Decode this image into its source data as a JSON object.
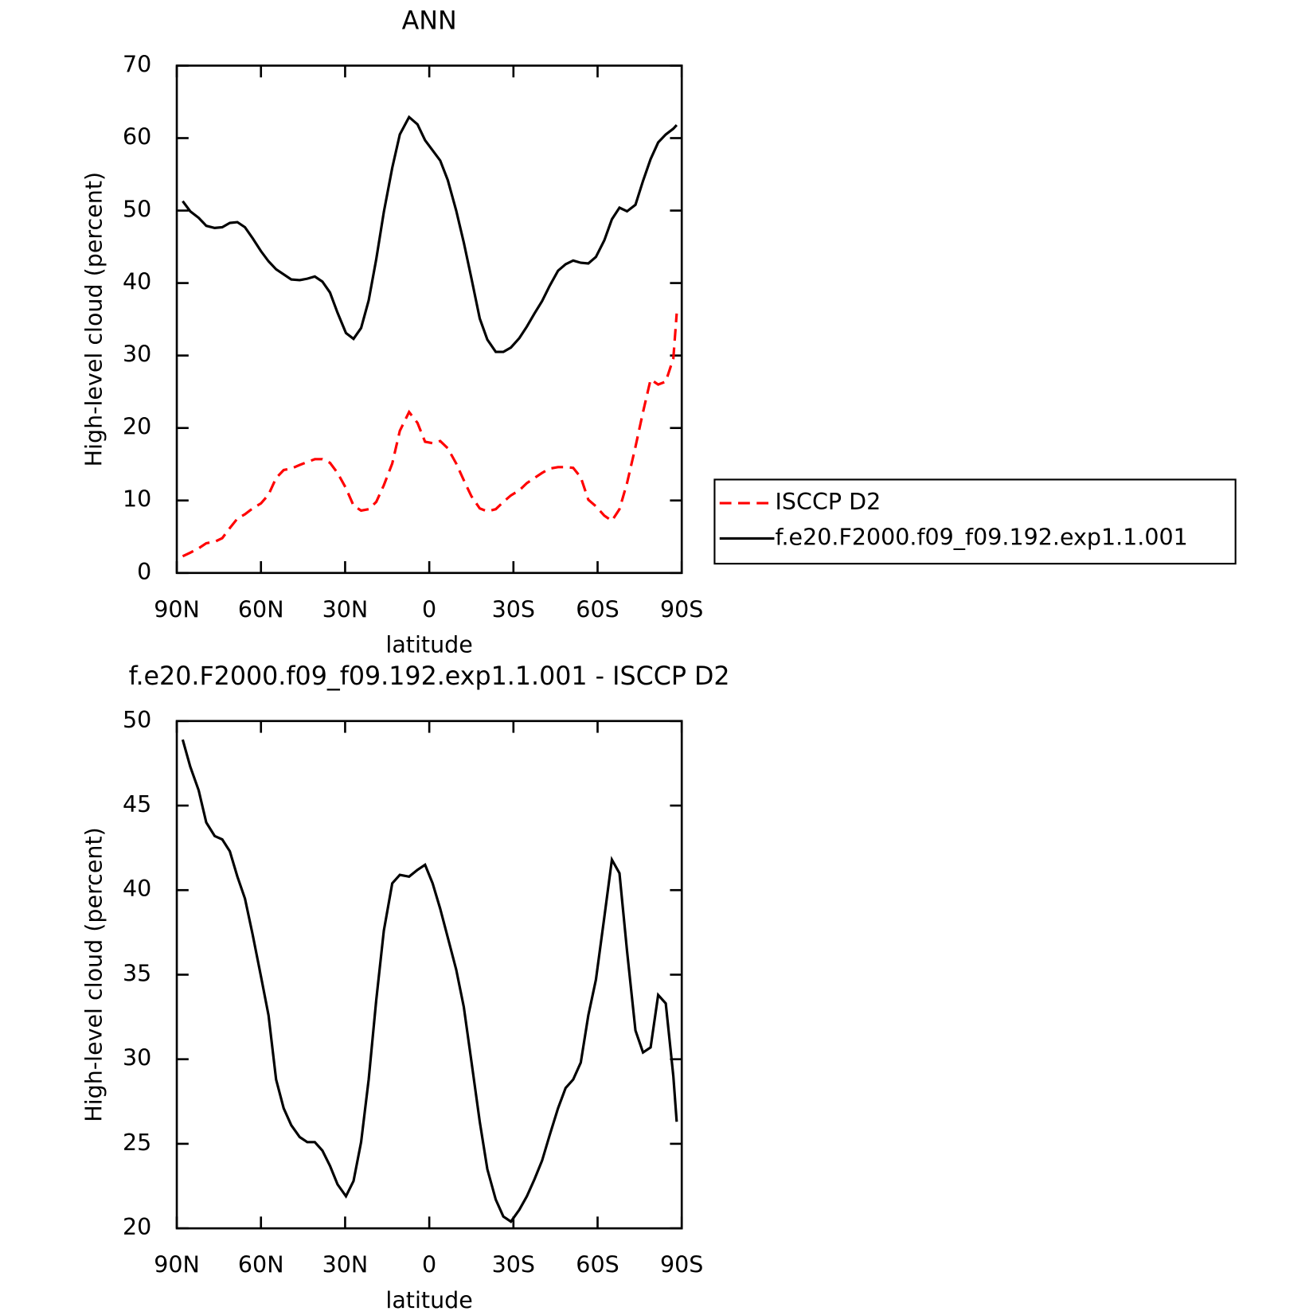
{
  "chart_data": [
    {
      "type": "line",
      "title": "ANN",
      "xlabel": "latitude",
      "ylabel": "High-level cloud (percent)",
      "x": [
        87.9,
        85.2,
        82.2,
        79.5,
        76.5,
        73.8,
        71.1,
        68.4,
        65.7,
        63.0,
        60.0,
        57.3,
        54.6,
        51.9,
        49.2,
        46.2,
        43.5,
        40.8,
        38.1,
        35.4,
        32.7,
        29.7,
        27.0,
        24.3,
        21.6,
        18.9,
        16.2,
        13.2,
        10.5,
        7.2,
        4.2,
        1.5,
        -1.2,
        -3.9,
        -6.6,
        -9.6,
        -12.3,
        -15.0,
        -18.0,
        -20.7,
        -23.7,
        -26.4,
        -29.1,
        -32.1,
        -34.8,
        -37.5,
        -40.2,
        -42.9,
        -45.9,
        -48.6,
        -51.3,
        -54.0,
        -56.7,
        -59.4,
        -62.4,
        -65.1,
        -67.8,
        -70.5,
        -73.5,
        -76.2,
        -78.9,
        -81.6,
        -84.3,
        -87.0,
        -88.2
      ],
      "series": [
        {
          "name": "ISCCP D2",
          "color": "#ff0000",
          "line_style": "dashed",
          "values": [
            2.3,
            2.8,
            3.4,
            4.1,
            4.3,
            4.8,
            6.2,
            7.5,
            8.1,
            8.9,
            9.6,
            10.8,
            13.1,
            14.2,
            14.4,
            14.9,
            15.3,
            15.7,
            15.7,
            15.2,
            13.8,
            11.7,
            9.3,
            8.6,
            8.8,
            9.8,
            12.1,
            15.1,
            19.6,
            22.2,
            20.7,
            18.1,
            17.9,
            18.2,
            17.2,
            15.1,
            12.8,
            10.6,
            8.9,
            8.5,
            8.8,
            9.8,
            10.7,
            11.4,
            12.4,
            13.1,
            13.8,
            14.4,
            14.6,
            14.6,
            14.5,
            13.2,
            10.1,
            9.2,
            7.9,
            7.2,
            8.8,
            12.4,
            17.4,
            22.2,
            26.7,
            26.0,
            26.4,
            29.6,
            35.8
          ]
        },
        {
          "name": "f.e20.F2000.f09_f09.192.exp1.1.001",
          "color": "#000000",
          "line_style": "solid",
          "values": [
            51.3,
            49.9,
            49.0,
            47.9,
            47.6,
            47.7,
            48.3,
            48.4,
            47.7,
            46.2,
            44.4,
            43.0,
            41.9,
            41.2,
            40.5,
            40.4,
            40.6,
            40.9,
            40.2,
            38.7,
            35.9,
            33.1,
            32.3,
            33.8,
            37.6,
            43.3,
            49.8,
            55.9,
            60.5,
            62.9,
            61.9,
            59.7,
            58.3,
            56.9,
            54.2,
            50.0,
            45.6,
            40.7,
            35.1,
            32.2,
            30.5,
            30.5,
            31.1,
            32.4,
            34.0,
            35.8,
            37.5,
            39.6,
            41.7,
            42.6,
            43.1,
            42.8,
            42.7,
            43.6,
            45.9,
            48.8,
            50.4,
            49.9,
            50.8,
            54.1,
            57.1,
            59.4,
            60.5,
            61.3,
            61.8
          ]
        }
      ],
      "xlim": [
        90,
        -90
      ],
      "xticks": [
        {
          "value": 90,
          "label": "90N"
        },
        {
          "value": 60,
          "label": "60N"
        },
        {
          "value": 30,
          "label": "30N"
        },
        0,
        {
          "value": -30,
          "label": "30S"
        },
        {
          "value": -60,
          "label": "60S"
        },
        {
          "value": -90,
          "label": "90S"
        }
      ],
      "ylim": [
        0,
        70
      ],
      "yticks": [
        0,
        10,
        20,
        30,
        40,
        50,
        60,
        70
      ],
      "legend": "right"
    },
    {
      "type": "line",
      "title": "f.e20.F2000.f09_f09.192.exp1.1.001 - ISCCP D2",
      "xlabel": "latitude",
      "ylabel": "High-level cloud (percent)",
      "x": [
        87.9,
        85.2,
        82.2,
        79.5,
        76.5,
        73.8,
        71.1,
        68.4,
        65.7,
        63.0,
        60.0,
        57.3,
        54.6,
        51.9,
        49.2,
        46.2,
        43.5,
        40.8,
        38.1,
        35.4,
        32.7,
        29.7,
        27.0,
        24.3,
        21.6,
        18.9,
        16.2,
        13.2,
        10.5,
        7.2,
        4.2,
        1.5,
        -1.2,
        -3.9,
        -6.6,
        -9.6,
        -12.3,
        -15.0,
        -18.0,
        -20.7,
        -23.7,
        -26.4,
        -29.1,
        -32.1,
        -34.8,
        -37.5,
        -40.2,
        -42.9,
        -45.9,
        -48.6,
        -51.3,
        -54.0,
        -56.7,
        -59.4,
        -62.4,
        -65.1,
        -67.8,
        -70.5,
        -73.5,
        -76.2,
        -78.9,
        -81.6,
        -84.3,
        -87.0,
        -88.2
      ],
      "series": [
        {
          "color": "#000000",
          "line_style": "solid",
          "values": [
            48.9,
            47.3,
            45.9,
            44.0,
            43.2,
            43.0,
            42.3,
            40.8,
            39.5,
            37.4,
            34.9,
            32.6,
            28.8,
            27.1,
            26.1,
            25.4,
            25.1,
            25.1,
            24.6,
            23.7,
            22.6,
            21.9,
            22.8,
            25.1,
            28.8,
            33.5,
            37.6,
            40.4,
            40.9,
            40.8,
            41.2,
            41.5,
            40.4,
            38.9,
            37.2,
            35.3,
            33.1,
            29.9,
            26.3,
            23.5,
            21.7,
            20.7,
            20.4,
            21.1,
            21.9,
            22.9,
            24.0,
            25.5,
            27.1,
            28.3,
            28.8,
            29.8,
            32.6,
            34.7,
            38.4,
            41.8,
            41.0,
            36.4,
            31.7,
            30.4,
            30.7,
            33.8,
            33.3,
            29.0,
            26.3
          ]
        }
      ],
      "xlim": [
        90,
        -90
      ],
      "xticks": [
        {
          "value": 90,
          "label": "90N"
        },
        {
          "value": 60,
          "label": "60N"
        },
        {
          "value": 30,
          "label": "30N"
        },
        0,
        {
          "value": -30,
          "label": "30S"
        },
        {
          "value": -60,
          "label": "60S"
        },
        {
          "value": -90,
          "label": "90S"
        }
      ],
      "ylim": [
        20,
        50
      ],
      "yticks": [
        20,
        25,
        30,
        35,
        40,
        45,
        50
      ]
    }
  ]
}
